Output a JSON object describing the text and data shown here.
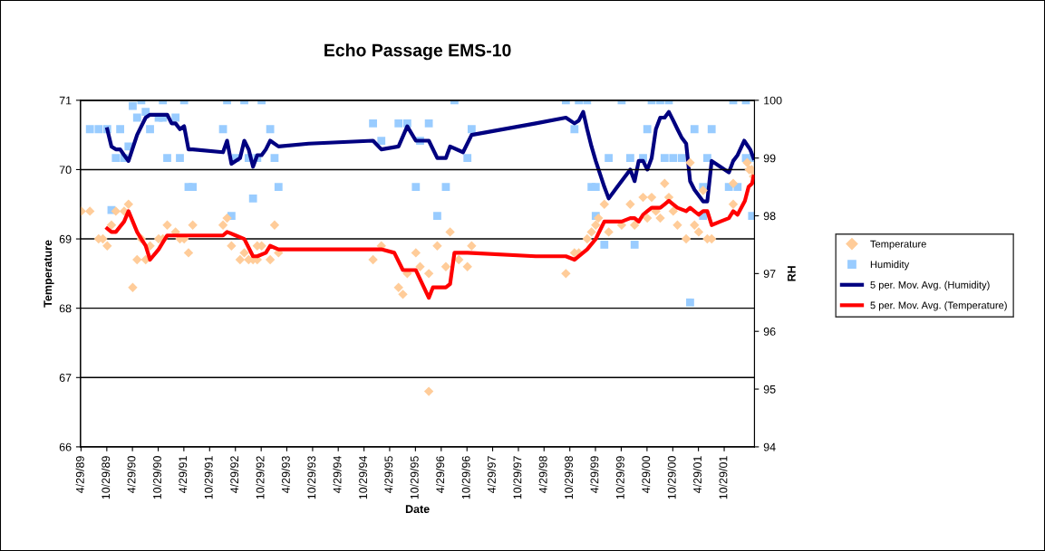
{
  "chart_data": {
    "type": "scatter",
    "title": "Echo Passage EMS-10",
    "xlabel": "Date",
    "ylabel": "Temperature",
    "y2label": "RH",
    "xlim": [
      "1989-04-25",
      "2002-06-01"
    ],
    "xticks": [
      {
        "value": "1989-04-29",
        "label": "4/29/89"
      },
      {
        "value": "1989-10-29",
        "label": "10/29/89"
      },
      {
        "value": "1990-04-29",
        "label": "4/29/90"
      },
      {
        "value": "1990-10-29",
        "label": "10/29/90"
      },
      {
        "value": "1991-04-29",
        "label": "4/29/91"
      },
      {
        "value": "1991-10-29",
        "label": "10/29/91"
      },
      {
        "value": "1992-04-29",
        "label": "4/29/92"
      },
      {
        "value": "1992-10-29",
        "label": "10/29/92"
      },
      {
        "value": "1993-04-29",
        "label": "4/29/93"
      },
      {
        "value": "1993-10-29",
        "label": "10/29/93"
      },
      {
        "value": "1994-04-29",
        "label": "4/29/94"
      },
      {
        "value": "1994-10-29",
        "label": "10/29/94"
      },
      {
        "value": "1995-04-29",
        "label": "4/29/95"
      },
      {
        "value": "1995-10-29",
        "label": "10/29/95"
      },
      {
        "value": "1996-04-29",
        "label": "4/29/96"
      },
      {
        "value": "1996-10-29",
        "label": "10/29/96"
      },
      {
        "value": "1997-04-29",
        "label": "4/29/97"
      },
      {
        "value": "1997-10-29",
        "label": "10/29/97"
      },
      {
        "value": "1998-04-29",
        "label": "4/29/98"
      },
      {
        "value": "1998-10-29",
        "label": "10/29/98"
      },
      {
        "value": "1999-04-29",
        "label": "4/29/99"
      },
      {
        "value": "1999-10-29",
        "label": "10/29/99"
      },
      {
        "value": "2000-04-29",
        "label": "4/29/00"
      },
      {
        "value": "2000-10-29",
        "label": "10/29/00"
      },
      {
        "value": "2001-04-29",
        "label": "4/29/01"
      },
      {
        "value": "2001-10-29",
        "label": "10/29/01"
      }
    ],
    "ylim": [
      66,
      71
    ],
    "yticks": [
      66,
      67,
      68,
      69,
      70,
      71
    ],
    "y2lim": [
      94,
      100
    ],
    "y2ticks": [
      94,
      95,
      96,
      97,
      98,
      99,
      100
    ],
    "grid": "y",
    "legend": "right",
    "series": [
      {
        "name": "Temperature",
        "marker": "diamond",
        "color": "#ffcc99",
        "x": [
          "1989-05",
          "1989-07",
          "1989-09",
          "1989-10",
          "1989-11",
          "1989-12",
          "1990-01",
          "1990-03",
          "1990-04",
          "1990-05",
          "1990-06",
          "1990-07",
          "1990-08",
          "1990-09",
          "1990-11",
          "1990-12",
          "1991-01",
          "1991-03",
          "1991-04",
          "1991-05",
          "1991-06",
          "1991-07",
          "1992-02",
          "1992-03",
          "1992-04",
          "1992-06",
          "1992-07",
          "1992-08",
          "1992-09",
          "1992-10",
          "1992-10",
          "1992-11",
          "1993-01",
          "1993-02",
          "1993-03",
          "1995-01",
          "1995-03",
          "1995-07",
          "1995-08",
          "1995-09",
          "1995-11",
          "1995-12",
          "1996-02",
          "1996-02",
          "1996-04",
          "1996-06",
          "1996-07",
          "1996-09",
          "1996-11",
          "1996-12",
          "1998-10",
          "1998-12",
          "1999-01",
          "1999-03",
          "1999-04",
          "1999-05",
          "1999-05-20",
          "1999-07",
          "1999-08",
          "1999-11",
          "2000-01",
          "2000-02",
          "2000-04",
          "2000-05",
          "2000-06",
          "2000-07",
          "2000-08",
          "2000-09",
          "2000-10",
          "2000-11",
          "2000-12",
          "2001-02",
          "2001-03",
          "2001-04",
          "2001-05",
          "2001-06",
          "2001-07",
          "2001-08",
          "2002-01",
          "2002-01",
          "2002-04-10",
          "2002-04-25",
          "2002-05-12",
          "2002-05-25"
        ],
        "values": [
          69.4,
          69.4,
          69.0,
          69.0,
          68.9,
          69.2,
          69.4,
          69.4,
          69.5,
          68.3,
          68.7,
          69.0,
          68.7,
          68.9,
          69.0,
          69.0,
          69.2,
          69.1,
          69.0,
          69.0,
          68.8,
          69.2,
          69.2,
          69.3,
          68.9,
          68.7,
          68.8,
          68.7,
          68.7,
          68.9,
          68.7,
          68.9,
          68.7,
          69.2,
          68.8,
          68.7,
          68.9,
          68.3,
          68.2,
          68.5,
          68.8,
          68.6,
          68.5,
          66.8,
          68.9,
          68.6,
          69.1,
          68.7,
          68.6,
          68.9,
          68.5,
          68.8,
          68.8,
          69.0,
          69.1,
          69.2,
          69.3,
          69.5,
          69.1,
          69.2,
          69.5,
          69.2,
          69.6,
          69.3,
          69.6,
          69.4,
          69.3,
          69.8,
          69.6,
          69.4,
          69.2,
          69.0,
          70.1,
          69.2,
          69.1,
          69.7,
          69.0,
          69.0,
          69.8,
          69.5,
          70.1,
          70.0,
          70.0,
          69.9
        ]
      },
      {
        "name": "Humidity",
        "marker": "square",
        "color": "#99ccff",
        "axis": "y2",
        "x": [
          "1989-07",
          "1989-09",
          "1989-11",
          "1989-12",
          "1990-01",
          "1990-02",
          "1990-03",
          "1990-04",
          "1990-05",
          "1990-06",
          "1990-07",
          "1990-08",
          "1990-09",
          "1990-11",
          "1990-12",
          "1990-12",
          "1991-01",
          "1991-03",
          "1991-04",
          "1991-05",
          "1991-06",
          "1991-07",
          "1992-02",
          "1992-03",
          "1992-04",
          "1992-05",
          "1992-07",
          "1992-08",
          "1992-09",
          "1992-10",
          "1992-11",
          "1993-01",
          "1993-02",
          "1993-03",
          "1995-01",
          "1995-03",
          "1995-07",
          "1995-09",
          "1995-11",
          "1995-12",
          "1996-02",
          "1996-04",
          "1996-06",
          "1996-08",
          "1996-11",
          "1996-12",
          "1998-10",
          "1998-12",
          "1999-01",
          "1999-03",
          "1999-04",
          "1999-05",
          "1999-05",
          "1999-07",
          "1999-08",
          "1999-11",
          "2000-01",
          "2000-02",
          "2000-04",
          "2000-05",
          "2000-06",
          "2000-08",
          "2000-09",
          "2000-10",
          "2000-11",
          "2001-01",
          "2001-03",
          "2001-04",
          "2001-06",
          "2001-06",
          "2001-07",
          "2001-08",
          "2001-12",
          "2002-01",
          "2002-02",
          "2002-04",
          "2002-04",
          "2002-05-15",
          "2002-05-20"
        ],
        "values": [
          99.5,
          99.5,
          99.5,
          98.1,
          99.0,
          99.5,
          99.0,
          99.2,
          99.9,
          99.7,
          100,
          99.8,
          99.5,
          99.7,
          100,
          99.7,
          99.0,
          99.7,
          99.0,
          100,
          98.5,
          98.5,
          99.5,
          100,
          98.0,
          99.0,
          100,
          99.0,
          98.3,
          99.0,
          100,
          99.5,
          99.0,
          98.5,
          99.6,
          99.3,
          99.6,
          99.6,
          98.5,
          99.3,
          99.6,
          98.0,
          98.5,
          100,
          99.0,
          99.5,
          100,
          99.5,
          100,
          100,
          98.5,
          98.5,
          98.0,
          97.5,
          99.0,
          100,
          99.0,
          97.5,
          99.0,
          99.5,
          100,
          100,
          99.0,
          100,
          99.0,
          99.0,
          96.5,
          99.5,
          98.5,
          98.0,
          99.0,
          99.5,
          98.5,
          100,
          98.5,
          99.0,
          100,
          98.0,
          99.0
        ]
      },
      {
        "name": "5 per. Mov. Avg. (Humidity)",
        "type": "line",
        "marker": "none",
        "line_style": "solid",
        "color": "#000080",
        "axis": "y2",
        "x": [
          "1989-11",
          "1989-12",
          "1990-01",
          "1990-02",
          "1990-03",
          "1990-04",
          "1990-06",
          "1990-07",
          "1990-08",
          "1990-09",
          "1990-11",
          "1991-01",
          "1991-02",
          "1991-03",
          "1991-04",
          "1991-05",
          "1991-06",
          "1991-07",
          "1992-02",
          "1992-03",
          "1992-04",
          "1992-06",
          "1992-07",
          "1992-08",
          "1992-09",
          "1992-10",
          "1992-11",
          "1992-12",
          "1993-01",
          "1993-03",
          "1993-10",
          "1995-01",
          "1995-03",
          "1995-07",
          "1995-09",
          "1995-11",
          "1996-02",
          "1996-04",
          "1996-06",
          "1996-07",
          "1996-10",
          "1996-12",
          "1998-03",
          "1998-10",
          "1998-12",
          "1999-01",
          "1999-02",
          "1999-03",
          "1999-04",
          "1999-05",
          "1999-07",
          "1999-08",
          "1999-10",
          "2000-01",
          "2000-02",
          "2000-03",
          "2000-04",
          "2000-05",
          "2000-06",
          "2000-07",
          "2000-08",
          "2000-09",
          "2000-10",
          "2000-11",
          "2000-12",
          "2001-01",
          "2001-02",
          "2001-03",
          "2001-04",
          "2001-06",
          "2001-07",
          "2001-08",
          "2001-10",
          "2001-12",
          "2002-01",
          "2002-02",
          "2002-03-20",
          "2002-05-01",
          "2002-05-25"
        ],
        "values": [
          99.5,
          99.2,
          99.15,
          99.15,
          99.05,
          98.95,
          99.4,
          99.55,
          99.7,
          99.75,
          99.75,
          99.75,
          99.6,
          99.6,
          99.5,
          99.55,
          99.15,
          99.15,
          99.1,
          99.3,
          98.9,
          99.0,
          99.3,
          99.15,
          98.85,
          99.05,
          99.05,
          99.15,
          99.3,
          99.2,
          99.25,
          99.3,
          99.15,
          99.2,
          99.55,
          99.3,
          99.3,
          99.0,
          99.0,
          99.2,
          99.1,
          99.4,
          99.6,
          99.7,
          99.6,
          99.65,
          99.8,
          99.5,
          99.2,
          98.95,
          98.5,
          98.3,
          98.5,
          98.8,
          98.6,
          98.95,
          98.95,
          98.8,
          99.0,
          99.5,
          99.7,
          99.7,
          99.8,
          99.65,
          99.5,
          99.35,
          99.25,
          98.6,
          98.45,
          98.25,
          98.25,
          98.95,
          98.85,
          98.75,
          98.95,
          99.05,
          99.3,
          99.15,
          99.0
        ]
      },
      {
        "name": "5 per. Mov. Avg. (Temperature)",
        "type": "line",
        "marker": "none",
        "line_style": "solid",
        "color": "#ff0000",
        "x": [
          "1989-11",
          "1989-12",
          "1990-01",
          "1990-03",
          "1990-04",
          "1990-06",
          "1990-07",
          "1990-08",
          "1990-09",
          "1990-11",
          "1990-12",
          "1991-01",
          "1991-03",
          "1991-04",
          "1991-05",
          "1992-02",
          "1992-03",
          "1992-05",
          "1992-07",
          "1992-09",
          "1992-10",
          "1992-12",
          "1993-01",
          "1993-03",
          "1993-10",
          "1995-03",
          "1995-06",
          "1995-08",
          "1995-11",
          "1996-02",
          "1996-03",
          "1996-06",
          "1996-07",
          "1996-08",
          "1996-11",
          "1998-03",
          "1998-10",
          "1998-12",
          "1999-03",
          "1999-05",
          "1999-07",
          "1999-11",
          "2000-01",
          "2000-02",
          "2000-03",
          "2000-04",
          "2000-05",
          "2000-06",
          "2000-08",
          "2000-09",
          "2000-10",
          "2000-11",
          "2000-12",
          "2001-02",
          "2001-03",
          "2001-05",
          "2001-06",
          "2001-07",
          "2001-08",
          "2001-10",
          "2001-12",
          "2002-01",
          "2002-02",
          "2002-03-25",
          "2002-04-20",
          "2002-05-15",
          "2002-05-25"
        ],
        "values": [
          69.15,
          69.1,
          69.1,
          69.25,
          69.4,
          69.1,
          69.0,
          68.9,
          68.7,
          68.85,
          68.95,
          69.05,
          69.05,
          69.05,
          69.05,
          69.05,
          69.1,
          69.05,
          69.0,
          68.75,
          68.75,
          68.8,
          68.9,
          68.85,
          68.85,
          68.85,
          68.8,
          68.55,
          68.55,
          68.15,
          68.3,
          68.3,
          68.35,
          68.8,
          68.8,
          68.75,
          68.75,
          68.7,
          68.85,
          69.0,
          69.25,
          69.25,
          69.3,
          69.3,
          69.25,
          69.35,
          69.4,
          69.45,
          69.45,
          69.5,
          69.55,
          69.5,
          69.45,
          69.4,
          69.45,
          69.35,
          69.4,
          69.4,
          69.2,
          69.25,
          69.3,
          69.4,
          69.35,
          69.55,
          69.75,
          69.8,
          69.9
        ]
      }
    ]
  }
}
